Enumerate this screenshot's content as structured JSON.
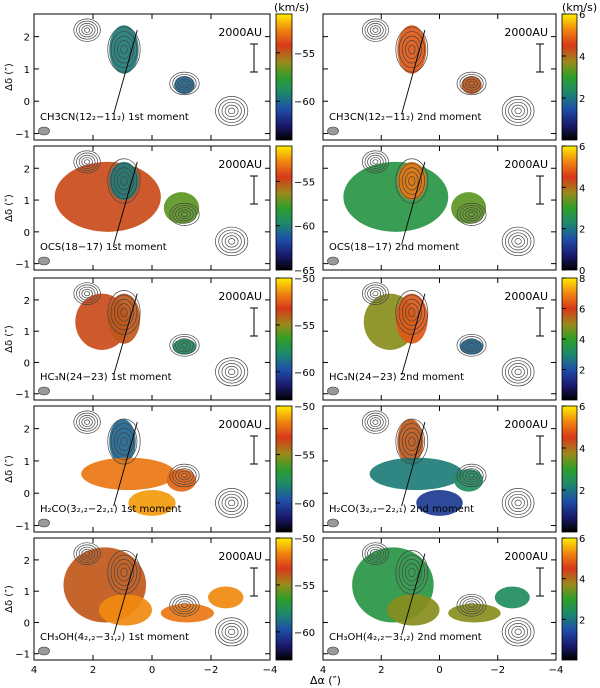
{
  "figure": {
    "unit_label": "(km/s)",
    "scale_bar_label": "2000AU",
    "ylabel": "Δδ (″)",
    "xlabel": "Δα (″)",
    "x_ticks": [
      "4",
      "2",
      "0",
      "−2",
      "−4"
    ],
    "y_ticks": [
      "2",
      "1",
      "0",
      "−1"
    ]
  },
  "chart_data": [
    {
      "type": "heatmap",
      "panel": "CH3CN 1st",
      "title": "CH3CN(12₂−11₂) 1st moment",
      "colorbar_ticks": [
        "−55",
        "−60"
      ],
      "vrange": [
        -64,
        -51
      ],
      "xlim": [
        4,
        -4
      ],
      "ylim": [
        -1.2,
        2.7
      ]
    },
    {
      "type": "heatmap",
      "panel": "CH3CN 2nd",
      "title": "CH3CN(12₂−11₂) 2nd moment",
      "colorbar_ticks": [
        "6",
        "4",
        "2"
      ],
      "vrange": [
        0,
        6
      ],
      "xlim": [
        4,
        -4
      ],
      "ylim": [
        -1.2,
        2.7
      ]
    },
    {
      "type": "heatmap",
      "panel": "OCS 1st",
      "title": "OCS(18−17) 1st moment",
      "colorbar_ticks": [
        "−55",
        "−60",
        "−65"
      ],
      "vrange": [
        -65,
        -51
      ],
      "xlim": [
        4,
        -4
      ],
      "ylim": [
        -1.2,
        2.7
      ]
    },
    {
      "type": "heatmap",
      "panel": "OCS 2nd",
      "title": "OCS(18−17) 2nd moment",
      "colorbar_ticks": [
        "6",
        "4",
        "2",
        "0"
      ],
      "vrange": [
        0,
        6
      ],
      "xlim": [
        4,
        -4
      ],
      "ylim": [
        -1.2,
        2.7
      ]
    },
    {
      "type": "heatmap",
      "panel": "HC3N 1st",
      "title": "HC₃N(24−23) 1st moment",
      "colorbar_ticks": [
        "−50",
        "−55",
        "−60"
      ],
      "vrange": [
        -63,
        -50
      ],
      "xlim": [
        4,
        -4
      ],
      "ylim": [
        -1.2,
        2.7
      ]
    },
    {
      "type": "heatmap",
      "panel": "HC3N 2nd",
      "title": "HC₃N(24−23) 2nd moment",
      "colorbar_ticks": [
        "8",
        "6",
        "4",
        "2"
      ],
      "vrange": [
        0,
        8
      ],
      "xlim": [
        4,
        -4
      ],
      "ylim": [
        -1.2,
        2.7
      ]
    },
    {
      "type": "heatmap",
      "panel": "H2CO 1st",
      "title": "H₂CO(3₂,₂−2₂,₁) 1st moment",
      "colorbar_ticks": [
        "−50",
        "−55",
        "−60"
      ],
      "vrange": [
        -63,
        -50
      ],
      "xlim": [
        4,
        -4
      ],
      "ylim": [
        -1.2,
        2.7
      ]
    },
    {
      "type": "heatmap",
      "panel": "H2CO 2nd",
      "title": "H₂CO(3₂,₂−2₂,₁) 2nd moment",
      "colorbar_ticks": [
        "6",
        "4",
        "2"
      ],
      "vrange": [
        0,
        6
      ],
      "xlim": [
        4,
        -4
      ],
      "ylim": [
        -1.2,
        2.7
      ]
    },
    {
      "type": "heatmap",
      "panel": "CH3OH 1st",
      "title": "CH₃OH(4₂,₂−3₁,₂) 1st moment",
      "colorbar_ticks": [
        "−50",
        "−55",
        "−60"
      ],
      "vrange": [
        -63,
        -50
      ],
      "xlim": [
        4,
        -4
      ],
      "ylim": [
        -1.2,
        2.7
      ]
    },
    {
      "type": "heatmap",
      "panel": "CH3OH 2nd",
      "title": "CH₃OH(4₂,₂−3₁,₂) 2nd moment",
      "colorbar_ticks": [
        "6",
        "4",
        "2"
      ],
      "vrange": [
        0,
        6
      ],
      "xlim": [
        4,
        -4
      ],
      "ylim": [
        -1.2,
        2.7
      ]
    }
  ]
}
